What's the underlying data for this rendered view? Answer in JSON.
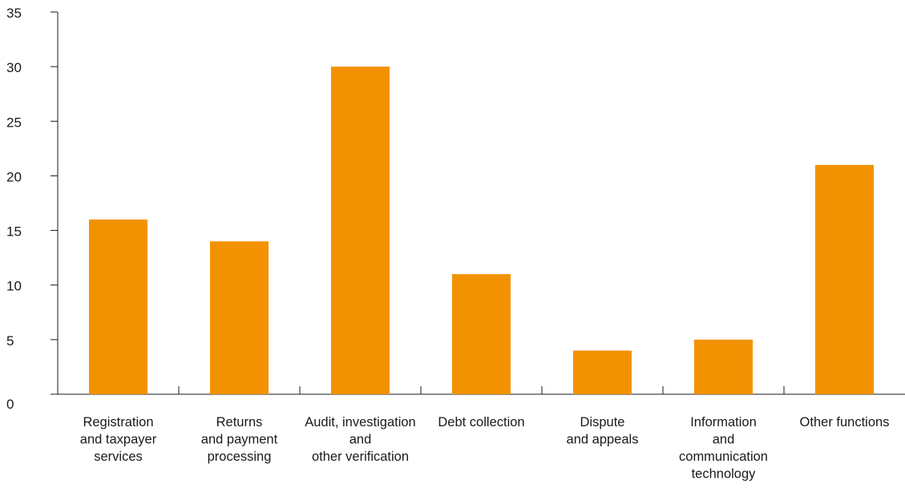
{
  "chart_data": {
    "type": "bar",
    "categories": [
      "Registration and taxpayer services",
      "Returns and payment processing",
      "Audit, investigation and other verification",
      "Debt collection",
      "Dispute and appeals",
      "Information and communication technology",
      "Other functions"
    ],
    "category_label_lines": [
      [
        "Registration",
        "and taxpayer",
        "services"
      ],
      [
        "Returns",
        "and payment",
        "processing"
      ],
      [
        "Audit, investigation",
        "and",
        "other verification"
      ],
      [
        "Debt collection"
      ],
      [
        "Dispute",
        "and appeals"
      ],
      [
        "Information",
        "and",
        "communication",
        "technology"
      ],
      [
        "Other functions"
      ]
    ],
    "values": [
      16,
      14,
      30,
      11,
      4,
      5,
      21
    ],
    "title": "",
    "xlabel": "",
    "ylabel": "",
    "ylim": [
      0,
      35
    ],
    "yticks": [
      0,
      5,
      10,
      15,
      20,
      25,
      30,
      35
    ],
    "grid": false,
    "legend": "none",
    "bar_color": "#F39200",
    "axis_color": "#1a1a1a"
  }
}
